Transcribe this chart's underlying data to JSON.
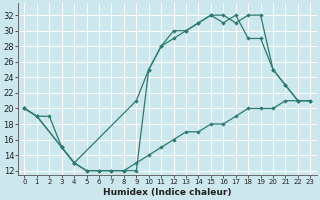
{
  "xlabel": "Humidex (Indice chaleur)",
  "background_color": "#cce8ee",
  "grid_color": "#ffffff",
  "line_color": "#2d7a6e",
  "xlim": [
    -0.5,
    23.5
  ],
  "ylim": [
    11.5,
    33.5
  ],
  "xticks": [
    0,
    1,
    2,
    3,
    4,
    5,
    6,
    7,
    8,
    9,
    10,
    11,
    12,
    13,
    14,
    15,
    16,
    17,
    18,
    19,
    20,
    21,
    22,
    23
  ],
  "yticks": [
    12,
    14,
    16,
    18,
    20,
    22,
    24,
    26,
    28,
    30,
    32
  ],
  "line1_x": [
    0,
    1,
    3,
    4,
    5,
    6,
    7,
    8,
    9,
    10,
    11,
    12,
    13,
    14,
    15,
    16,
    17,
    18,
    19,
    20,
    21,
    22,
    23
  ],
  "line1_y": [
    20,
    19,
    15,
    13,
    12,
    12,
    12,
    12,
    12,
    25,
    28,
    29,
    30,
    31,
    32,
    32,
    31,
    32,
    32,
    25,
    23,
    21,
    21
  ],
  "line2_x": [
    0,
    1,
    3,
    4,
    9,
    10,
    11,
    12,
    13,
    14,
    15,
    16,
    17,
    18,
    19,
    20,
    21,
    22,
    23
  ],
  "line2_y": [
    20,
    19,
    15,
    13,
    21,
    25,
    28,
    30,
    30,
    31,
    32,
    31,
    32,
    29,
    29,
    25,
    23,
    21,
    21
  ],
  "line3_x": [
    0,
    1,
    2,
    3,
    4,
    5,
    6,
    7,
    8,
    9,
    10,
    11,
    12,
    13,
    14,
    15,
    16,
    17,
    18,
    19,
    20,
    21,
    22,
    23
  ],
  "line3_y": [
    20,
    19,
    19,
    15,
    13,
    12,
    12,
    12,
    12,
    13,
    14,
    15,
    16,
    17,
    17,
    18,
    18,
    19,
    20,
    20,
    20,
    21,
    21,
    21
  ]
}
